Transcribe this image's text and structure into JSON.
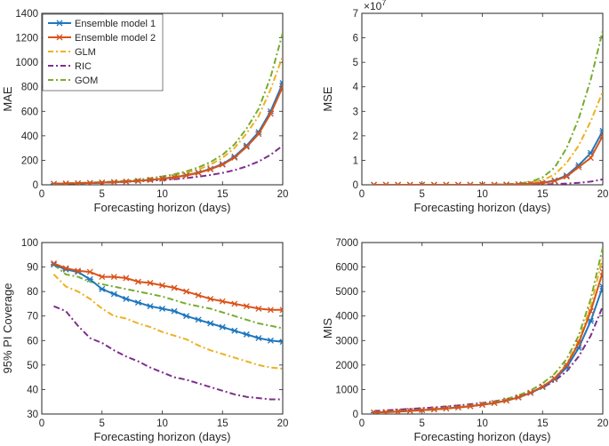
{
  "colors": {
    "ensemble1": "#1f77bd",
    "ensemble2": "#d95319",
    "glm": "#edb120",
    "ric": "#7e2f8e",
    "gom": "#77ac30",
    "axis": "#262626"
  },
  "chart_data": [
    {
      "id": "mae",
      "type": "line",
      "title": "",
      "xlabel": "Forecasting horizon (days)",
      "ylabel": "MAE",
      "xlim": [
        0,
        20
      ],
      "ylim": [
        0,
        1400
      ],
      "xticks": [
        0,
        5,
        10,
        15,
        20
      ],
      "yticks": [
        0,
        200,
        400,
        600,
        800,
        1000,
        1200,
        1400
      ],
      "exponent": "",
      "legend_position": "top-left",
      "x": [
        1,
        2,
        3,
        4,
        5,
        6,
        7,
        8,
        9,
        10,
        11,
        12,
        13,
        14,
        15,
        16,
        17,
        18,
        19,
        20
      ],
      "series": [
        {
          "key": "ensemble1",
          "name": "Ensemble model 1",
          "style": "solid",
          "marker": "star",
          "values": [
            8,
            10,
            12,
            15,
            18,
            22,
            26,
            32,
            40,
            50,
            62,
            78,
            100,
            130,
            170,
            230,
            320,
            430,
            600,
            830
          ]
        },
        {
          "key": "ensemble2",
          "name": "Ensemble model 2",
          "style": "solid",
          "marker": "x",
          "values": [
            8,
            10,
            12,
            15,
            18,
            22,
            26,
            32,
            40,
            49,
            61,
            76,
            97,
            127,
            165,
            222,
            310,
            415,
            580,
            800
          ]
        },
        {
          "key": "glm",
          "name": "GLM",
          "style": "dashdot",
          "marker": "",
          "values": [
            9,
            11,
            14,
            17,
            21,
            26,
            31,
            38,
            48,
            60,
            76,
            97,
            125,
            165,
            220,
            300,
            420,
            560,
            780,
            1050
          ]
        },
        {
          "key": "ric",
          "name": "RIC",
          "style": "dashdot",
          "marker": "",
          "values": [
            8,
            10,
            12,
            14,
            17,
            20,
            24,
            28,
            33,
            39,
            46,
            55,
            66,
            80,
            97,
            120,
            150,
            190,
            245,
            320
          ]
        },
        {
          "key": "gom",
          "name": "GOM",
          "style": "dashdot",
          "marker": "",
          "values": [
            10,
            12,
            15,
            18,
            22,
            27,
            33,
            42,
            54,
            68,
            86,
            110,
            142,
            185,
            245,
            330,
            460,
            620,
            880,
            1240
          ]
        }
      ]
    },
    {
      "id": "mse",
      "type": "line",
      "title": "",
      "xlabel": "Forecasting horizon (days)",
      "ylabel": "MSE",
      "xlim": [
        0,
        20
      ],
      "ylim": [
        0,
        7
      ],
      "xticks": [
        0,
        5,
        10,
        15,
        20
      ],
      "yticks": [
        0,
        1,
        2,
        3,
        4,
        5,
        6,
        7
      ],
      "exponent": "×10",
      "exponent_power": "7",
      "legend_position": "none",
      "x": [
        1,
        2,
        3,
        4,
        5,
        6,
        7,
        8,
        9,
        10,
        11,
        12,
        13,
        14,
        15,
        16,
        17,
        18,
        19,
        20
      ],
      "series": [
        {
          "key": "ensemble1",
          "name": "Ensemble model 1",
          "style": "solid",
          "marker": "star",
          "values": [
            0,
            0,
            0,
            0,
            0,
            0,
            0,
            0,
            0,
            0,
            0,
            0.01,
            0.02,
            0.04,
            0.08,
            0.18,
            0.38,
            0.8,
            1.3,
            2.2
          ]
        },
        {
          "key": "ensemble2",
          "name": "Ensemble model 2",
          "style": "solid",
          "marker": "x",
          "values": [
            0,
            0,
            0,
            0,
            0,
            0,
            0,
            0,
            0,
            0,
            0,
            0.01,
            0.02,
            0.04,
            0.07,
            0.16,
            0.34,
            0.72,
            1.1,
            2.0
          ]
        },
        {
          "key": "glm",
          "name": "GLM",
          "style": "dashdot",
          "marker": "",
          "values": [
            0,
            0,
            0,
            0,
            0,
            0,
            0,
            0,
            0,
            0,
            0,
            0.02,
            0.04,
            0.08,
            0.18,
            0.42,
            0.9,
            1.6,
            2.6,
            3.8
          ]
        },
        {
          "key": "ric",
          "name": "RIC",
          "style": "dashdot",
          "marker": "",
          "values": [
            0,
            0,
            0,
            0,
            0,
            0,
            0,
            0,
            0,
            0,
            0,
            0,
            0,
            0.01,
            0.02,
            0.03,
            0.05,
            0.08,
            0.13,
            0.22
          ]
        },
        {
          "key": "gom",
          "name": "GOM",
          "style": "dashdot",
          "marker": "",
          "values": [
            0,
            0,
            0,
            0,
            0,
            0,
            0,
            0,
            0,
            0,
            0.01,
            0.02,
            0.05,
            0.12,
            0.3,
            0.7,
            1.5,
            2.7,
            4.3,
            6.3
          ]
        }
      ]
    },
    {
      "id": "coverage",
      "type": "line",
      "title": "",
      "xlabel": "Forecasting horizon (days)",
      "ylabel": "95% PI Coverage",
      "xlim": [
        0,
        20
      ],
      "ylim": [
        30,
        100
      ],
      "xticks": [
        0,
        5,
        10,
        15,
        20
      ],
      "yticks": [
        30,
        40,
        50,
        60,
        70,
        80,
        90,
        100
      ],
      "exponent": "",
      "legend_position": "none",
      "x": [
        1,
        2,
        3,
        4,
        5,
        6,
        7,
        8,
        9,
        10,
        11,
        12,
        13,
        14,
        15,
        16,
        17,
        18,
        19,
        20
      ],
      "series": [
        {
          "key": "ensemble1",
          "name": "Ensemble model 1",
          "style": "solid",
          "marker": "star",
          "values": [
            91,
            89,
            88,
            85,
            81,
            79,
            77,
            75.5,
            74,
            73,
            72,
            70,
            68.5,
            67,
            65.5,
            64,
            62.5,
            61,
            60,
            59.5
          ]
        },
        {
          "key": "ensemble2",
          "name": "Ensemble model 2",
          "style": "solid",
          "marker": "x",
          "values": [
            91.5,
            89.5,
            88.5,
            88,
            86,
            86,
            85.5,
            84,
            83.5,
            82.5,
            81.5,
            80,
            78.5,
            77,
            76,
            75,
            74,
            73,
            72.5,
            72.5
          ]
        },
        {
          "key": "glm",
          "name": "GLM",
          "style": "dashdot",
          "marker": "",
          "values": [
            87,
            82,
            80,
            77,
            73,
            70,
            69,
            67,
            65.5,
            63.5,
            62,
            60.5,
            58,
            56,
            54.5,
            53,
            51.5,
            50,
            49,
            48.5
          ]
        },
        {
          "key": "ric",
          "name": "RIC",
          "style": "dashdot",
          "marker": "",
          "values": [
            74,
            72,
            66,
            61,
            59,
            56,
            53.5,
            51.5,
            49,
            47,
            45,
            44,
            42.5,
            41,
            39.5,
            38,
            37,
            36.5,
            36,
            36
          ]
        },
        {
          "key": "gom",
          "name": "GOM",
          "style": "dashdot",
          "marker": "",
          "values": [
            91,
            87,
            86,
            84,
            83,
            82,
            81,
            80,
            79,
            78,
            76.5,
            75,
            74,
            73,
            71.5,
            70,
            68.5,
            67,
            66,
            65
          ]
        }
      ]
    },
    {
      "id": "mis",
      "type": "line",
      "title": "",
      "xlabel": "Forecasting horizon (days)",
      "ylabel": "MIS",
      "xlim": [
        0,
        20
      ],
      "ylim": [
        0,
        7000
      ],
      "xticks": [
        0,
        5,
        10,
        15,
        20
      ],
      "yticks": [
        0,
        1000,
        2000,
        3000,
        4000,
        5000,
        6000,
        7000
      ],
      "exponent": "",
      "legend_position": "none",
      "x": [
        1,
        2,
        3,
        4,
        5,
        6,
        7,
        8,
        9,
        10,
        11,
        12,
        13,
        14,
        15,
        16,
        17,
        18,
        19,
        20
      ],
      "series": [
        {
          "key": "ensemble1",
          "name": "Ensemble model 1",
          "style": "solid",
          "marker": "star",
          "values": [
            60,
            80,
            100,
            130,
            160,
            190,
            230,
            270,
            320,
            380,
            450,
            550,
            680,
            860,
            1100,
            1420,
            1900,
            2700,
            3800,
            5200
          ]
        },
        {
          "key": "ensemble2",
          "name": "Ensemble model 2",
          "style": "solid",
          "marker": "x",
          "values": [
            60,
            80,
            100,
            130,
            160,
            190,
            230,
            270,
            320,
            380,
            450,
            550,
            680,
            870,
            1120,
            1450,
            2000,
            2900,
            4200,
            5800
          ]
        },
        {
          "key": "glm",
          "name": "GLM",
          "style": "dashdot",
          "marker": "",
          "values": [
            50,
            70,
            90,
            115,
            145,
            175,
            215,
            260,
            310,
            370,
            440,
            540,
            670,
            850,
            1110,
            1460,
            2050,
            3000,
            4400,
            6400
          ]
        },
        {
          "key": "ric",
          "name": "RIC",
          "style": "dashdot",
          "marker": "",
          "values": [
            120,
            150,
            180,
            210,
            240,
            270,
            310,
            350,
            400,
            450,
            520,
            610,
            730,
            880,
            1080,
            1350,
            1750,
            2350,
            3200,
            4400
          ]
        },
        {
          "key": "gom",
          "name": "GOM",
          "style": "dashdot",
          "marker": "",
          "values": [
            70,
            90,
            115,
            140,
            170,
            200,
            240,
            290,
            350,
            420,
            500,
            610,
            760,
            960,
            1250,
            1640,
            2250,
            3200,
            4700,
            6800
          ]
        }
      ]
    }
  ]
}
